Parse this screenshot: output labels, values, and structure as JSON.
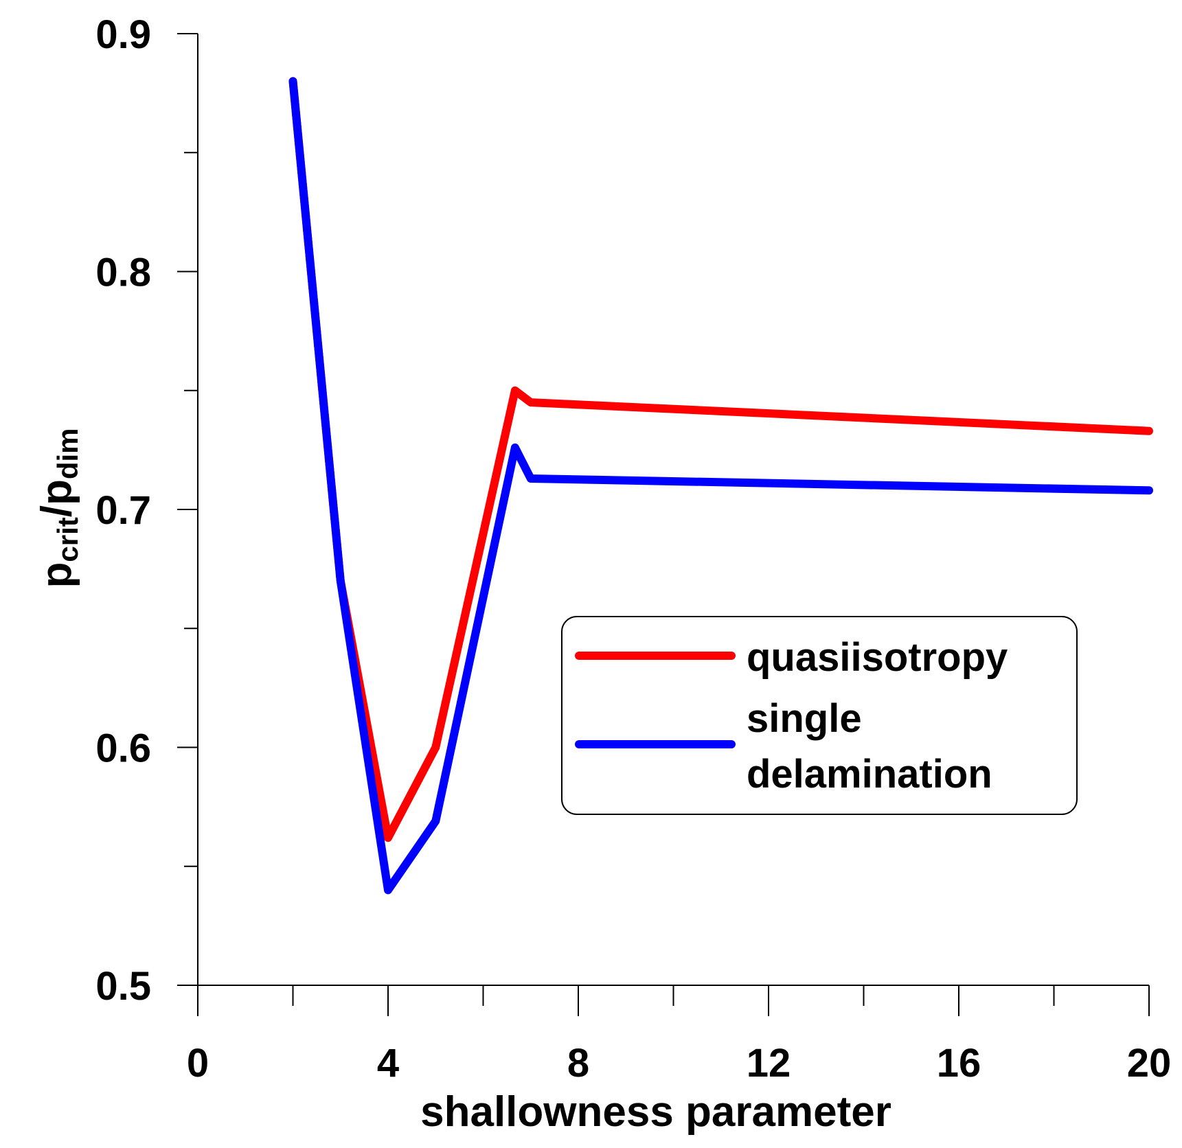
{
  "chart_data": {
    "type": "line",
    "title": "",
    "xlabel": "shallowness parameter",
    "ylabel": {
      "main_1": "p",
      "sub_1": "crit",
      "sep": "/",
      "main_2": "p",
      "sub_2": "dim"
    },
    "xlim": [
      0,
      20
    ],
    "ylim": [
      0.5,
      0.9
    ],
    "x_major_ticks": [
      0,
      4,
      8,
      12,
      16,
      20
    ],
    "x_tick_labels": [
      "0",
      "4",
      "8",
      "12",
      "16",
      "20"
    ],
    "x_minor_ticks": [
      2,
      6,
      10,
      14,
      18
    ],
    "y_major_ticks": [
      0.5,
      0.6,
      0.7,
      0.8,
      0.9
    ],
    "y_tick_labels": [
      "0.5",
      "0.6",
      "0.7",
      "0.8",
      "0.9"
    ],
    "y_minor_ticks": [
      0.55,
      0.65,
      0.75,
      0.85
    ],
    "grid": false,
    "legend_position": "center-right",
    "series": [
      {
        "name": "quasiisotropy",
        "color": "#ff0000",
        "x": [
          2,
          3,
          4,
          5,
          6.67,
          7,
          20
        ],
        "y": [
          0.88,
          0.67,
          0.562,
          0.6,
          0.75,
          0.745,
          0.733
        ]
      },
      {
        "name": "single delamination",
        "legend_lines": [
          "single",
          "delamination"
        ],
        "color": "#0000ff",
        "x": [
          2,
          3,
          4,
          5,
          6.67,
          7,
          20
        ],
        "y": [
          0.88,
          0.67,
          0.54,
          0.569,
          0.726,
          0.713,
          0.708
        ]
      }
    ]
  }
}
